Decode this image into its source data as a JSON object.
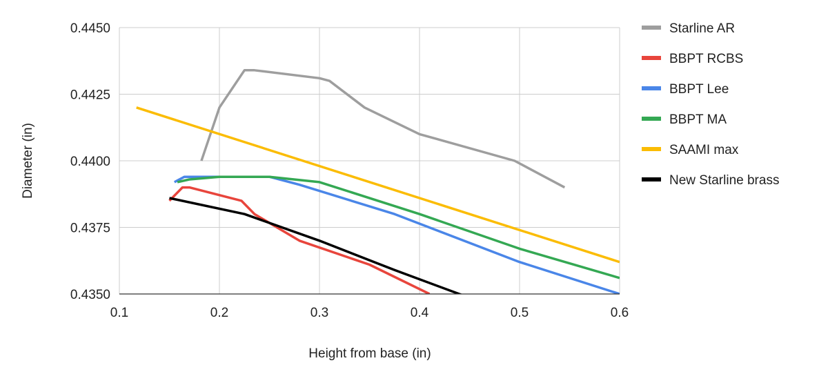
{
  "chart_data": {
    "type": "line",
    "title": "",
    "xlabel": "Height from base (in)",
    "ylabel": "Diameter (in)",
    "xlim": [
      0.1,
      0.6
    ],
    "ylim": [
      0.435,
      0.445
    ],
    "x_ticks": [
      0.1,
      0.2,
      0.3,
      0.4,
      0.5,
      0.6
    ],
    "x_tick_labels": [
      "0.1",
      "0.2",
      "0.3",
      "0.4",
      "0.5",
      "0.6"
    ],
    "y_ticks": [
      0.435,
      0.4375,
      0.44,
      0.4425,
      0.445
    ],
    "y_tick_labels": [
      "0.4350",
      "0.4375",
      "0.4400",
      "0.4425",
      "0.4450"
    ],
    "grid": true,
    "legend_position": "right",
    "series": [
      {
        "name": "Starline AR",
        "color": "#9e9e9e",
        "points": [
          [
            0.182,
            0.44
          ],
          [
            0.2,
            0.442
          ],
          [
            0.225,
            0.4434
          ],
          [
            0.235,
            0.4434
          ],
          [
            0.3,
            0.4431
          ],
          [
            0.31,
            0.443
          ],
          [
            0.345,
            0.442
          ],
          [
            0.4,
            0.441
          ],
          [
            0.495,
            0.44
          ],
          [
            0.545,
            0.439
          ]
        ]
      },
      {
        "name": "BBPT RCBS",
        "color": "#e8453c",
        "points": [
          [
            0.15,
            0.4385
          ],
          [
            0.163,
            0.439
          ],
          [
            0.17,
            0.439
          ],
          [
            0.222,
            0.4385
          ],
          [
            0.235,
            0.438
          ],
          [
            0.28,
            0.437
          ],
          [
            0.35,
            0.4361
          ],
          [
            0.41,
            0.435
          ]
        ]
      },
      {
        "name": "BBPT Lee",
        "color": "#4a86e8",
        "points": [
          [
            0.155,
            0.4392
          ],
          [
            0.165,
            0.4394
          ],
          [
            0.25,
            0.4394
          ],
          [
            0.28,
            0.4391
          ],
          [
            0.375,
            0.438
          ],
          [
            0.5,
            0.4362
          ],
          [
            0.6,
            0.435
          ]
        ]
      },
      {
        "name": "BBPT MA",
        "color": "#34a853",
        "points": [
          [
            0.158,
            0.4392
          ],
          [
            0.17,
            0.4393
          ],
          [
            0.2,
            0.4394
          ],
          [
            0.25,
            0.4394
          ],
          [
            0.3,
            0.4392
          ],
          [
            0.4,
            0.438
          ],
          [
            0.5,
            0.4367
          ],
          [
            0.6,
            0.4356
          ]
        ]
      },
      {
        "name": "SAAMI max",
        "color": "#fbbc04",
        "points": [
          [
            0.117,
            0.442
          ],
          [
            0.6,
            0.4362
          ]
        ]
      },
      {
        "name": "New Starline brass",
        "color": "#000000",
        "points": [
          [
            0.15,
            0.4386
          ],
          [
            0.225,
            0.438
          ],
          [
            0.3,
            0.437
          ],
          [
            0.375,
            0.4359
          ],
          [
            0.447,
            0.4349
          ]
        ]
      }
    ]
  }
}
